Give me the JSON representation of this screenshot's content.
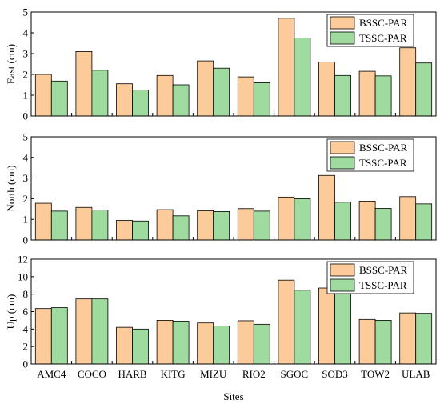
{
  "colors": {
    "bssc": "#FDCB9A",
    "tssc": "#9FDA9F"
  },
  "figure": {
    "xlabel": "Sites"
  },
  "chart_data": [
    {
      "type": "bar",
      "ylabel": "East (cm)",
      "ylim": [
        0,
        5
      ],
      "yticks": [
        0,
        1,
        2,
        3,
        4,
        5
      ],
      "categories": [
        "AMC4",
        "COCO",
        "HARB",
        "KITG",
        "MIZU",
        "RIO2",
        "SGOC",
        "SOD3",
        "TOW2",
        "ULAB"
      ],
      "legend_position": "top-right",
      "series": [
        {
          "name": "BSSC-PAR",
          "values": [
            2.0,
            3.1,
            1.55,
            1.95,
            2.65,
            1.88,
            4.7,
            2.6,
            2.15,
            3.28
          ]
        },
        {
          "name": "TSSC-PAR",
          "values": [
            1.68,
            2.2,
            1.25,
            1.5,
            2.3,
            1.6,
            3.75,
            1.95,
            1.93,
            2.55
          ]
        }
      ]
    },
    {
      "type": "bar",
      "ylabel": "North (cm)",
      "ylim": [
        0,
        5
      ],
      "yticks": [
        0,
        1,
        2,
        3,
        4,
        5
      ],
      "categories": [
        "AMC4",
        "COCO",
        "HARB",
        "KITG",
        "MIZU",
        "RIO2",
        "SGOC",
        "SOD3",
        "TOW2",
        "ULAB"
      ],
      "legend_position": "top-right",
      "series": [
        {
          "name": "BSSC-PAR",
          "values": [
            1.78,
            1.58,
            0.95,
            1.47,
            1.42,
            1.52,
            2.08,
            3.13,
            1.88,
            2.1
          ]
        },
        {
          "name": "TSSC-PAR",
          "values": [
            1.4,
            1.45,
            0.92,
            1.17,
            1.38,
            1.4,
            2.0,
            1.83,
            1.53,
            1.75
          ]
        }
      ]
    },
    {
      "type": "bar",
      "ylabel": "Up (cm)",
      "ylim": [
        0,
        12
      ],
      "yticks": [
        0,
        2,
        4,
        6,
        8,
        10,
        12
      ],
      "categories": [
        "AMC4",
        "COCO",
        "HARB",
        "KITG",
        "MIZU",
        "RIO2",
        "SGOC",
        "SOD3",
        "TOW2",
        "ULAB"
      ],
      "legend_position": "top-right",
      "series": [
        {
          "name": "BSSC-PAR",
          "values": [
            6.35,
            7.45,
            4.2,
            5.0,
            4.7,
            4.95,
            9.6,
            8.7,
            5.1,
            5.85
          ]
        },
        {
          "name": "TSSC-PAR",
          "values": [
            6.45,
            7.45,
            4.0,
            4.9,
            4.35,
            4.55,
            8.45,
            8.1,
            5.0,
            5.8
          ]
        }
      ]
    }
  ]
}
